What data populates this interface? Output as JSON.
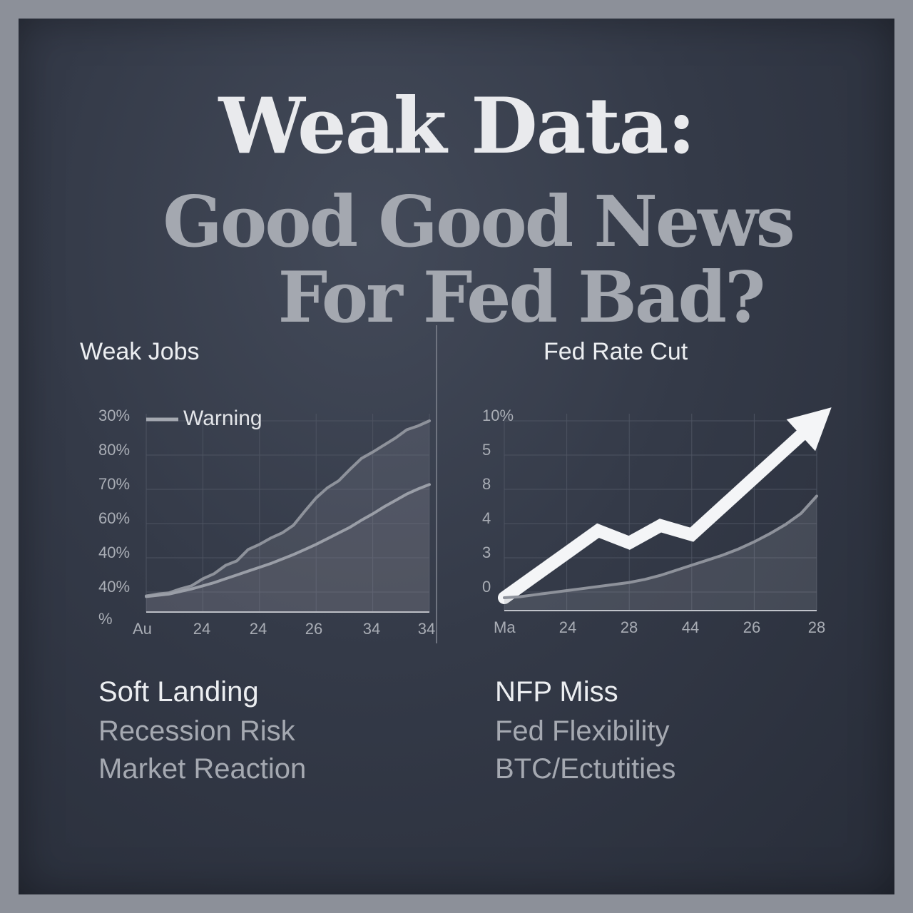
{
  "headline": {
    "line1": "Weak Data:",
    "line2": "Good Good News",
    "line3": "For Fed Bad?"
  },
  "chart_data": [
    {
      "type": "line",
      "title": "Weak Jobs",
      "legend": {
        "label": "Warning",
        "placement": "top-left"
      },
      "y_tick_labels": [
        "30%",
        "80%",
        "70%",
        "60%",
        "40%",
        "40%",
        "%"
      ],
      "x_tick_labels": [
        "Au",
        "24",
        "24",
        "26",
        "34",
        "34"
      ],
      "grid": true,
      "series": [
        {
          "name": "Warning",
          "values": [
            0.5,
            0.8,
            1.0,
            1.6,
            2.1,
            3.2,
            4.0,
            5.3,
            6.0,
            7.8,
            8.6,
            9.6,
            10.4,
            11.6,
            13.8,
            15.9,
            17.5,
            18.6,
            20.4,
            22.1,
            23.1,
            24.2,
            25.3,
            26.6,
            27.2,
            28.0
          ]
        },
        {
          "values": [
            0.4,
            0.6,
            0.8,
            1.2,
            1.6,
            2.1,
            2.6,
            3.2,
            3.8,
            4.4,
            5.0,
            5.6,
            6.3,
            7.0,
            7.8,
            8.6,
            9.5,
            10.4,
            11.3,
            12.4,
            13.4,
            14.5,
            15.5,
            16.5,
            17.3,
            18.0
          ]
        }
      ]
    },
    {
      "type": "line",
      "title": "Fed Rate Cut",
      "y_tick_labels": [
        "10%",
        "5",
        "8",
        "4",
        "3",
        "0"
      ],
      "x_tick_labels": [
        "Ma",
        "24",
        "28",
        "44",
        "26",
        "28"
      ],
      "grid": true,
      "series": [
        {
          "values": [
            0,
            2.2,
            4.4,
            6.6,
            5.4,
            7.1,
            6.2,
            9.0,
            11.8,
            14.6,
            17.4
          ]
        },
        {
          "values": [
            0,
            0.1,
            0.3,
            0.5,
            0.7,
            0.9,
            1.1,
            1.3,
            1.5,
            1.8,
            2.2,
            2.7,
            3.2,
            3.7,
            4.2,
            4.8,
            5.5,
            6.3,
            7.2,
            8.3,
            10.0
          ]
        }
      ]
    }
  ],
  "footer": {
    "left": [
      "Soft Landing",
      "Recession Risk",
      "Market Reaction"
    ],
    "right": [
      "NFP Miss",
      "Fed Flexibility",
      "BTC/Ectutities"
    ]
  }
}
